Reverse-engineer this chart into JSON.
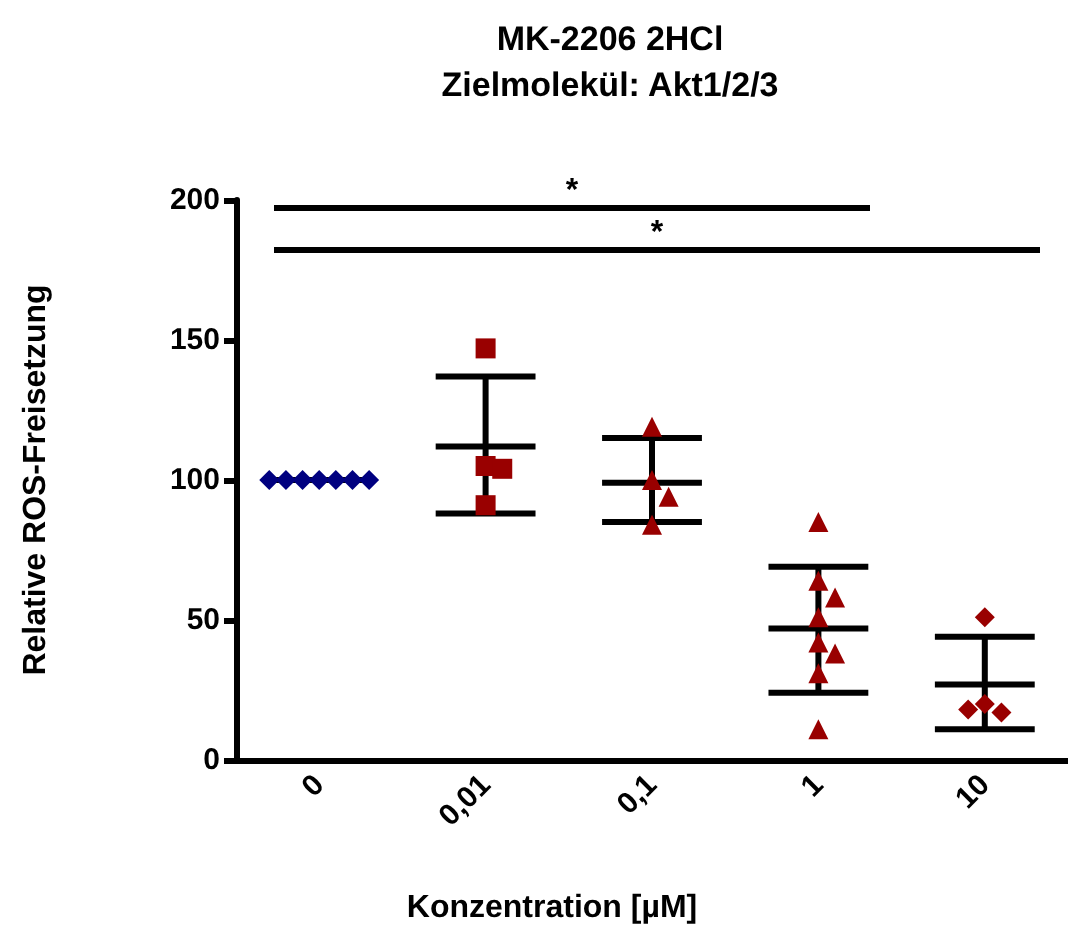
{
  "chart_data": {
    "type": "scatter",
    "title": "MK-2206 2HCl",
    "subtitle": "Zielmolekül: Akt1/2/3",
    "xlabel": "Konzentration [µM]",
    "ylabel": "Relative ROS-Freisetzung",
    "categories": [
      "0",
      "0,01",
      "0,1",
      "1",
      "10"
    ],
    "series": [
      {
        "color": "#000080",
        "marker": "diamond",
        "x": [
          "0",
          "0",
          "0",
          "0",
          "0",
          "0",
          "0"
        ],
        "values": [
          100,
          100,
          100,
          100,
          100,
          100,
          100
        ]
      },
      {
        "color": "#990000",
        "marker": "square",
        "x": [
          "0,01",
          "0,01",
          "0,01",
          "0,01"
        ],
        "values": [
          147,
          105,
          104,
          91
        ]
      },
      {
        "color": "#990000",
        "marker": "triangle",
        "x": [
          "0,1",
          "0,1",
          "0,1",
          "0,1"
        ],
        "values": [
          119,
          100,
          84,
          94
        ]
      },
      {
        "color": "#990000",
        "marker": "triangle",
        "x": [
          "1",
          "1",
          "1",
          "1",
          "1",
          "1",
          "1",
          "1"
        ],
        "values": [
          85,
          64,
          58,
          51,
          42,
          38,
          31,
          11
        ]
      },
      {
        "color": "#990000",
        "marker": "diamond",
        "x": [
          "10",
          "10",
          "10",
          "10"
        ],
        "values": [
          51,
          20,
          17,
          18
        ]
      },
      {
        "type": "box",
        "color": "#000000",
        "boxes": [
          {
            "low": 100,
            "q1": 100,
            "median": 100,
            "q3": 100,
            "high": 100
          },
          {
            "low": 88,
            "q1": 112,
            "median": 112,
            "q3": 112,
            "high": 137
          },
          {
            "low": 85,
            "q1": 99,
            "median": 99,
            "q3": 99,
            "high": 115
          },
          {
            "low": 24,
            "q1": 47,
            "median": 47,
            "q3": 47,
            "high": 69
          },
          {
            "low": 11,
            "q1": 27,
            "median": 27,
            "q3": 27,
            "high": 44
          }
        ]
      }
    ],
    "annotations": [
      "*",
      "*"
    ],
    "ylim": [
      0,
      200
    ],
    "yticks": [
      0,
      50,
      100,
      150,
      200
    ],
    "grid": false
  }
}
